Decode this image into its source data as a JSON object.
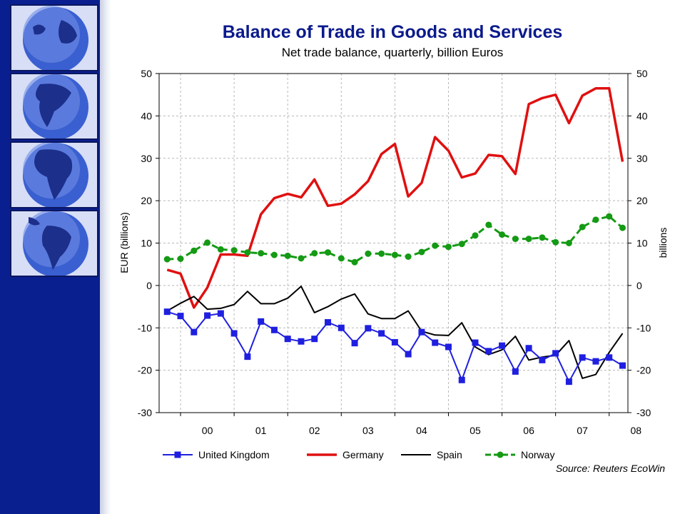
{
  "chart_data": {
    "type": "line",
    "title": "Balance of Trade in Goods and Services",
    "subtitle": "Net trade balance, quarterly, billion Euros",
    "ylabel": "EUR (billions)",
    "ylabel_right": "billions",
    "source": "Source: Reuters EcoWin",
    "ylim": [
      -30,
      50
    ],
    "yticks": [
      -30,
      -20,
      -10,
      0,
      10,
      20,
      30,
      40,
      50
    ],
    "year_labels": [
      "00",
      "01",
      "02",
      "03",
      "04",
      "05",
      "06",
      "07",
      "08"
    ],
    "x_start_year": 1999.75,
    "x_step": 0.25,
    "grid": true,
    "legend_position": "bottom",
    "series": [
      {
        "name": "United Kingdom",
        "color": "#1f1fe0",
        "style": "solid",
        "marker": "square",
        "values": [
          -6.2,
          -7.2,
          -11.0,
          -7.1,
          -6.6,
          -11.3,
          -16.8,
          -8.5,
          -10.5,
          -12.6,
          -13.2,
          -12.6,
          -8.7,
          -10.0,
          -13.6,
          -10.1,
          -11.3,
          -13.4,
          -16.2,
          -11.0,
          -13.5,
          -14.5,
          -22.3,
          -13.5,
          -15.5,
          -14.2,
          -20.3,
          -14.8,
          -17.6,
          -16.0,
          -22.7,
          -17.0,
          -17.9,
          -17.0,
          -18.9
        ]
      },
      {
        "name": "Germany",
        "color": "#e01010",
        "style": "solid",
        "marker": "none",
        "values": [
          3.7,
          2.8,
          -5.2,
          -0.5,
          7.3,
          7.3,
          7.0,
          16.8,
          20.6,
          21.6,
          20.8,
          25.0,
          18.8,
          19.3,
          21.5,
          24.6,
          31.0,
          33.4,
          21.0,
          24.2,
          35.0,
          31.8,
          25.5,
          26.4,
          30.8,
          30.5,
          26.3,
          42.8,
          44.2,
          45.0,
          38.3,
          44.8,
          46.5,
          46.5,
          29.2
        ]
      },
      {
        "name": "Spain",
        "color": "#000000",
        "style": "solid",
        "marker": "none",
        "values": [
          -6.0,
          -4.2,
          -2.6,
          -5.6,
          -5.4,
          -4.5,
          -1.4,
          -4.3,
          -4.3,
          -3.0,
          -0.2,
          -6.4,
          -5.0,
          -3.2,
          -2.0,
          -6.7,
          -7.8,
          -7.8,
          -6.0,
          -10.8,
          -11.7,
          -11.8,
          -8.8,
          -14.5,
          -16.3,
          -15.2,
          -12.0,
          -17.6,
          -16.9,
          -16.5,
          -13.0,
          -21.9,
          -21.0,
          -15.8,
          -11.3
        ]
      },
      {
        "name": "Norway",
        "color": "#149a14",
        "style": "dashed",
        "marker": "circle",
        "values": [
          6.2,
          6.3,
          8.2,
          10.1,
          8.5,
          8.3,
          7.8,
          7.6,
          7.2,
          7.0,
          6.4,
          7.6,
          7.8,
          6.4,
          5.5,
          7.5,
          7.5,
          7.2,
          6.8,
          7.9,
          9.4,
          9.1,
          9.8,
          11.8,
          14.3,
          12.0,
          11.0,
          11.0,
          11.3,
          10.2,
          10.0,
          13.8,
          15.5,
          16.3,
          13.6
        ]
      }
    ]
  }
}
